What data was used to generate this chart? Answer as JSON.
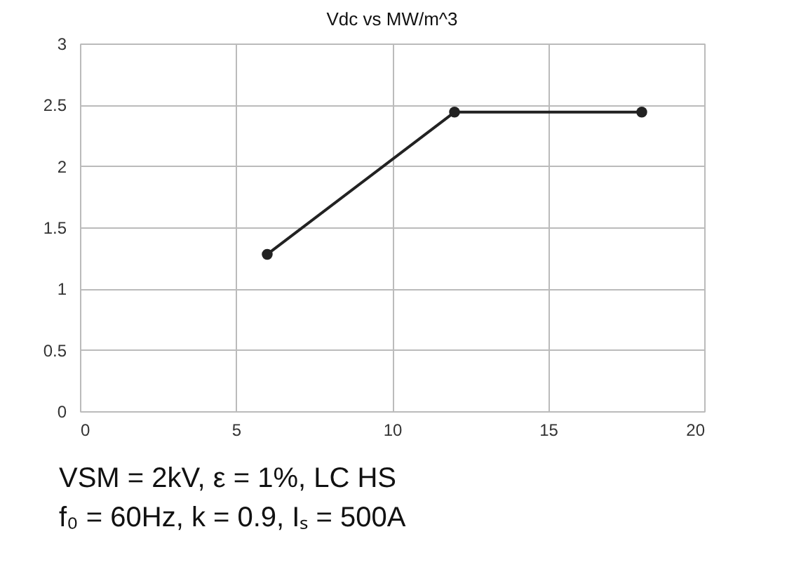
{
  "chart_data": {
    "type": "line",
    "title": "Vdc vs MW/m^3",
    "x": [
      6,
      12,
      18
    ],
    "series": [
      {
        "color": "#222222",
        "values": [
          1.28,
          2.44,
          2.44
        ]
      }
    ],
    "xlim": [
      0,
      20
    ],
    "xticks": [
      0,
      5,
      10,
      15,
      20
    ],
    "ylim": [
      0,
      3
    ],
    "yticks": [
      0,
      0.5,
      1,
      1.5,
      2,
      2.5,
      3
    ],
    "grid": true,
    "marker": "circle",
    "line_style": "solid",
    "annotations": [
      "VSM = 2kV, ε = 1%, LC HS",
      "f₀ = 60Hz, k = 0.9, Iₛ = 500A"
    ]
  }
}
